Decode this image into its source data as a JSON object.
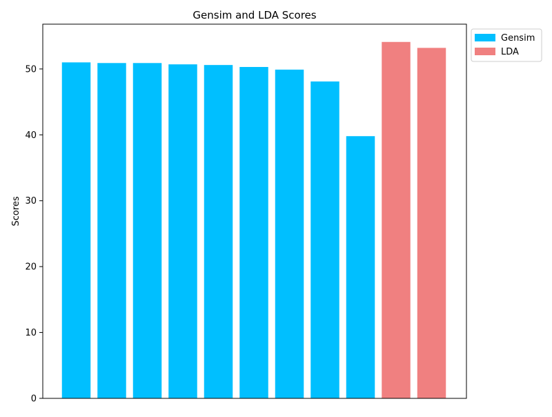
{
  "chart_data": {
    "type": "bar",
    "title": "Gensim and LDA Scores",
    "xlabel": "",
    "ylabel": "Scores",
    "ylim": [
      0,
      56.8
    ],
    "yticks": [
      0,
      10,
      20,
      30,
      40,
      50
    ],
    "grid": false,
    "legend_position": "upper right, outside plot",
    "series": [
      {
        "name": "Gensim",
        "color": "#00bfff",
        "values": [
          51.0,
          50.9,
          50.9,
          50.7,
          50.6,
          50.3,
          49.9,
          48.1,
          39.8
        ]
      },
      {
        "name": "LDA",
        "color": "#f08080",
        "values": [
          54.1,
          53.2
        ]
      }
    ]
  }
}
